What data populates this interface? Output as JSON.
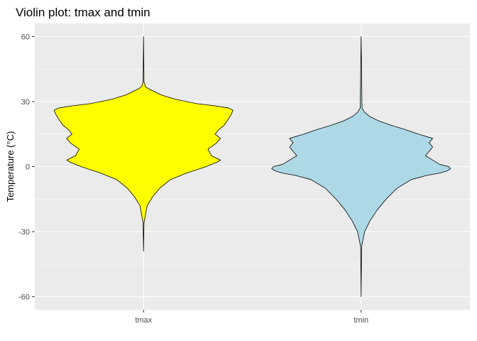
{
  "chart_data": {
    "type": "violin",
    "title": "Violin plot: tmax and tmin",
    "xlabel": "",
    "ylabel": "Temperature (°C)",
    "ylim": [
      -66,
      66
    ],
    "yticks": [
      60,
      30,
      0,
      -30,
      -60
    ],
    "grid": true,
    "legend": "none",
    "categories": [
      "tmax",
      "tmin"
    ],
    "series": [
      {
        "category": "tmax",
        "fill": "#ffff00",
        "stroke": "#000000",
        "min": -39,
        "max": 60,
        "profile": [
          [
            -39,
            0.0
          ],
          [
            -26,
            0.005
          ],
          [
            -18,
            0.04
          ],
          [
            -14,
            0.1
          ],
          [
            -10,
            0.18
          ],
          [
            -6,
            0.3
          ],
          [
            -3,
            0.48
          ],
          [
            0,
            0.7
          ],
          [
            2,
            0.82
          ],
          [
            3,
            0.86
          ],
          [
            5,
            0.76
          ],
          [
            8,
            0.72
          ],
          [
            11,
            0.82
          ],
          [
            13,
            0.86
          ],
          [
            15,
            0.8
          ],
          [
            17,
            0.84
          ],
          [
            19,
            0.9
          ],
          [
            22,
            0.95
          ],
          [
            24,
            0.98
          ],
          [
            26,
            1.0
          ],
          [
            27,
            0.95
          ],
          [
            28,
            0.8
          ],
          [
            29,
            0.6
          ],
          [
            31,
            0.36
          ],
          [
            33,
            0.2
          ],
          [
            35,
            0.1
          ],
          [
            36,
            0.05
          ],
          [
            37,
            0.02
          ],
          [
            39,
            0.005
          ],
          [
            60,
            0.0
          ]
        ]
      },
      {
        "category": "tmin",
        "fill": "#add8e6",
        "stroke": "#000000",
        "min": -60,
        "max": 60,
        "profile": [
          [
            -60,
            0.0
          ],
          [
            -37,
            0.005
          ],
          [
            -30,
            0.04
          ],
          [
            -25,
            0.1
          ],
          [
            -20,
            0.18
          ],
          [
            -15,
            0.28
          ],
          [
            -10,
            0.4
          ],
          [
            -6,
            0.56
          ],
          [
            -4,
            0.74
          ],
          [
            -3,
            0.88
          ],
          [
            -2,
            0.96
          ],
          [
            -1,
            1.0
          ],
          [
            0,
            0.98
          ],
          [
            1,
            0.88
          ],
          [
            3,
            0.8
          ],
          [
            5,
            0.72
          ],
          [
            7,
            0.76
          ],
          [
            9,
            0.8
          ],
          [
            11,
            0.76
          ],
          [
            13,
            0.8
          ],
          [
            15,
            0.64
          ],
          [
            17,
            0.5
          ],
          [
            19,
            0.34
          ],
          [
            21,
            0.2
          ],
          [
            23,
            0.1
          ],
          [
            25,
            0.04
          ],
          [
            27,
            0.01
          ],
          [
            60,
            0.0
          ]
        ]
      }
    ]
  }
}
